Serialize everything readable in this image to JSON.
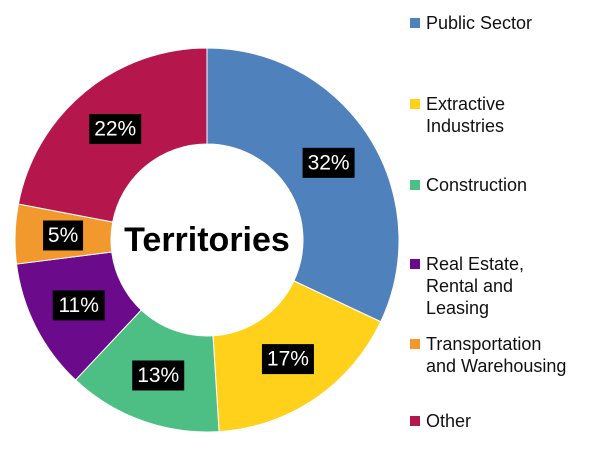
{
  "chart_data": {
    "type": "pie",
    "center_label": "Territories",
    "legend_position": "right",
    "slices": [
      {
        "name": "Public Sector",
        "value": 32,
        "label": "32%",
        "color": "#4F81BD"
      },
      {
        "name": "Extractive\nIndustries",
        "value": 17,
        "label": "17%",
        "color": "#FFD11A"
      },
      {
        "name": "Construction",
        "value": 13,
        "label": "13%",
        "color": "#4DBE84"
      },
      {
        "name": "Real Estate,\nRental and\nLeasing",
        "value": 11,
        "label": "11%",
        "color": "#6B0A8A"
      },
      {
        "name": "Transportation\nand Warehousing",
        "value": 5,
        "label": "5%",
        "color": "#F2992E"
      },
      {
        "name": "Other",
        "value": 22,
        "label": "22%",
        "color": "#B5174C"
      }
    ]
  }
}
